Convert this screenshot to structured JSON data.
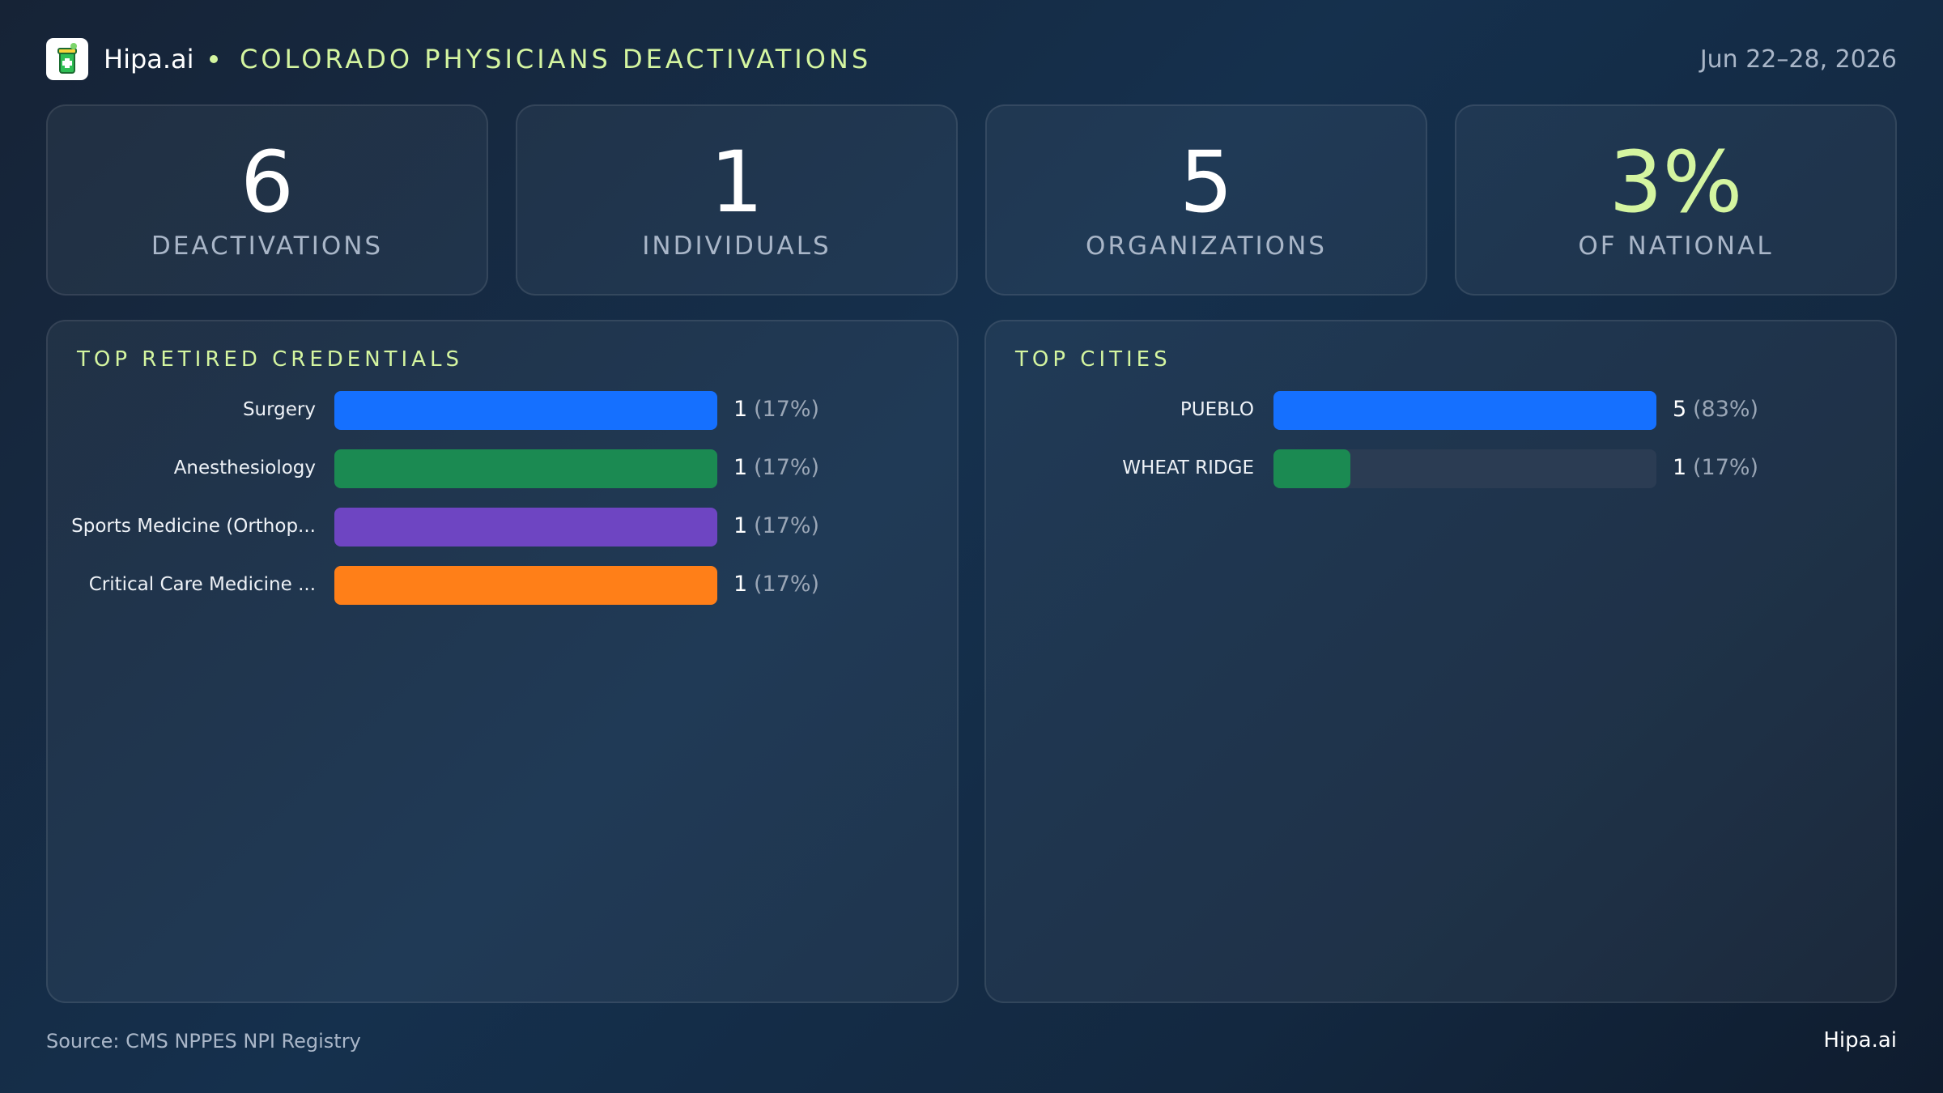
{
  "header": {
    "brand": "Hipa.ai",
    "title": "COLORADO PHYSICIANS DEACTIVATIONS",
    "date": "Jun 22–28, 2026"
  },
  "kpis": [
    {
      "value": "6",
      "label": "DEACTIVATIONS",
      "highlight": false
    },
    {
      "value": "1",
      "label": "INDIVIDUALS",
      "highlight": false
    },
    {
      "value": "5",
      "label": "ORGANIZATIONS",
      "highlight": false
    },
    {
      "value": "3%",
      "label": "OF NATIONAL",
      "highlight": true
    }
  ],
  "chart_data": [
    {
      "type": "bar",
      "orientation": "horizontal",
      "title": "TOP RETIRED CREDENTIALS",
      "categories": [
        "Surgery",
        "Anesthesiology",
        "Sports Medicine (Orthop...",
        "Critical Care Medicine ..."
      ],
      "values": [
        1,
        1,
        1,
        1
      ],
      "percent_labels": [
        "(17%)",
        "(17%)",
        "(17%)",
        "(17%)"
      ],
      "colors": [
        "#1570ff",
        "#1b8a52",
        "#6e45c2",
        "#ff7f18"
      ]
    },
    {
      "type": "bar",
      "orientation": "horizontal",
      "title": "TOP CITIES",
      "categories": [
        "PUEBLO",
        "WHEAT RIDGE"
      ],
      "values": [
        5,
        1
      ],
      "percent_labels": [
        "(83%)",
        "(17%)"
      ],
      "colors": [
        "#1570ff",
        "#1b8a52"
      ]
    }
  ],
  "footer": {
    "source": "Source: CMS NPPES NPI Registry",
    "brand": "Hipa.ai"
  }
}
